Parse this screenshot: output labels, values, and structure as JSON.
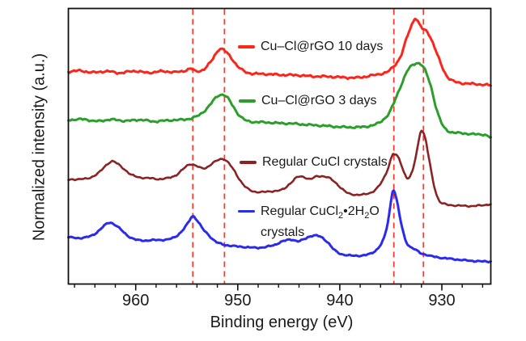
{
  "chart_data": {
    "type": "line",
    "title": "",
    "xlabel": "Binding energy (eV)",
    "ylabel": "Normalized intensity (a.u.)",
    "x_axis": {
      "max": 966.6,
      "min": 925.2,
      "reversed": true,
      "units": "eV",
      "major_ticks": [
        960,
        950,
        940,
        930
      ],
      "minor_tick_step": 2,
      "minor_tick_start": 966,
      "minor_tick_end": 926
    },
    "y_axis": {
      "units": "a.u.",
      "range": [
        0,
        100
      ],
      "ticks_shown": false
    },
    "grid": false,
    "legend_position": "inside-left-of-peaks",
    "guide_lines_ev": [
      954.4,
      951.3,
      934.7,
      931.8
    ],
    "guide_line_color": "#f93b30",
    "frame_color": "#111111",
    "series": [
      {
        "name": "Cu–Cl@rGO 10 days",
        "color": "#fa261b",
        "width": 3,
        "noise": 1.3,
        "points": [
          [
            966.6,
            77.1
          ],
          [
            965.5,
            77.4
          ],
          [
            964.2,
            76.8
          ],
          [
            962.8,
            77.2
          ],
          [
            961.5,
            76.6
          ],
          [
            960.2,
            77.3
          ],
          [
            958.8,
            76.7
          ],
          [
            957.4,
            77.2
          ],
          [
            956.2,
            76.9
          ],
          [
            955.2,
            77.4
          ],
          [
            954.6,
            78.2
          ],
          [
            954.1,
            77.2
          ],
          [
            953.3,
            78.0
          ],
          [
            952.6,
            80.9
          ],
          [
            951.9,
            84.9
          ],
          [
            951.4,
            85.0
          ],
          [
            950.7,
            82.4
          ],
          [
            950.0,
            79.0
          ],
          [
            949.3,
            77.1
          ],
          [
            948.6,
            76.4
          ],
          [
            947.2,
            76.2
          ],
          [
            945.7,
            75.9
          ],
          [
            944.2,
            75.8
          ],
          [
            942.7,
            75.4
          ],
          [
            941.2,
            75.3
          ],
          [
            939.7,
            75.0
          ],
          [
            938.3,
            74.9
          ],
          [
            937.0,
            75.6
          ],
          [
            936.1,
            76.2
          ],
          [
            935.3,
            77.1
          ],
          [
            934.6,
            79.5
          ],
          [
            934.0,
            83.0
          ],
          [
            933.4,
            89.7
          ],
          [
            932.9,
            94.4
          ],
          [
            932.6,
            96.5
          ],
          [
            932.2,
            94.3
          ],
          [
            931.8,
            92.3
          ],
          [
            931.4,
            91.5
          ],
          [
            930.8,
            86.8
          ],
          [
            930.2,
            80.9
          ],
          [
            929.6,
            76.0
          ],
          [
            929.0,
            73.9
          ],
          [
            928.3,
            73.0
          ],
          [
            927.2,
            72.7
          ],
          [
            926.1,
            72.4
          ],
          [
            925.2,
            72.1
          ]
        ]
      },
      {
        "name": "Cu–Cl@rGO 3 days",
        "color": "#2b9e2b",
        "width": 3,
        "noise": 1.2,
        "points": [
          [
            966.6,
            59.5
          ],
          [
            965.2,
            59.8
          ],
          [
            963.8,
            59.1
          ],
          [
            962.4,
            59.7
          ],
          [
            961.0,
            59.2
          ],
          [
            959.6,
            59.6
          ],
          [
            958.2,
            59.0
          ],
          [
            956.9,
            59.4
          ],
          [
            955.6,
            59.6
          ],
          [
            954.6,
            60.1
          ],
          [
            953.8,
            61.3
          ],
          [
            953.0,
            63.8
          ],
          [
            952.3,
            67.0
          ],
          [
            951.8,
            68.6
          ],
          [
            951.2,
            68.3
          ],
          [
            950.6,
            65.4
          ],
          [
            950.0,
            61.9
          ],
          [
            949.4,
            59.8
          ],
          [
            948.7,
            58.9
          ],
          [
            947.4,
            58.7
          ],
          [
            946.0,
            58.4
          ],
          [
            944.6,
            58.2
          ],
          [
            943.2,
            57.8
          ],
          [
            941.8,
            57.5
          ],
          [
            940.4,
            57.1
          ],
          [
            939.0,
            56.9
          ],
          [
            937.8,
            57.0
          ],
          [
            936.8,
            57.6
          ],
          [
            936.0,
            58.9
          ],
          [
            935.2,
            61.9
          ],
          [
            934.5,
            67.5
          ],
          [
            933.9,
            73.0
          ],
          [
            933.3,
            77.8
          ],
          [
            932.7,
            79.8
          ],
          [
            932.2,
            80.1
          ],
          [
            931.7,
            78.0
          ],
          [
            931.1,
            72.1
          ],
          [
            930.5,
            63.3
          ],
          [
            929.9,
            57.5
          ],
          [
            929.3,
            55.4
          ],
          [
            928.6,
            54.9
          ],
          [
            927.6,
            54.6
          ],
          [
            926.6,
            54.3
          ],
          [
            925.8,
            54.2
          ],
          [
            925.2,
            53.1
          ]
        ]
      },
      {
        "name": "Regular CuCl crystals",
        "color": "#8a2424",
        "width": 2.6,
        "noise": 0.9,
        "points": [
          [
            966.6,
            37.8
          ],
          [
            965.6,
            38.1
          ],
          [
            964.6,
            38.4
          ],
          [
            963.6,
            40.5
          ],
          [
            962.9,
            43.1
          ],
          [
            962.3,
            44.6
          ],
          [
            961.7,
            43.4
          ],
          [
            961.1,
            41.6
          ],
          [
            960.4,
            39.6
          ],
          [
            959.6,
            38.7
          ],
          [
            958.6,
            38.4
          ],
          [
            957.6,
            38.1
          ],
          [
            956.6,
            38.7
          ],
          [
            955.9,
            39.9
          ],
          [
            955.3,
            41.9
          ],
          [
            954.7,
            43.5
          ],
          [
            954.2,
            43.1
          ],
          [
            953.6,
            42.1
          ],
          [
            953.1,
            42.2
          ],
          [
            952.4,
            44.0
          ],
          [
            951.7,
            45.3
          ],
          [
            951.2,
            45.0
          ],
          [
            950.6,
            42.5
          ],
          [
            949.9,
            38.4
          ],
          [
            949.3,
            35.5
          ],
          [
            948.6,
            33.7
          ],
          [
            947.6,
            33.4
          ],
          [
            946.6,
            33.7
          ],
          [
            945.6,
            34.3
          ],
          [
            944.9,
            36.4
          ],
          [
            944.2,
            38.7
          ],
          [
            943.6,
            38.9
          ],
          [
            942.9,
            38.1
          ],
          [
            942.3,
            39.0
          ],
          [
            941.6,
            39.1
          ],
          [
            941.0,
            38.4
          ],
          [
            940.4,
            36.7
          ],
          [
            939.7,
            34.3
          ],
          [
            939.1,
            32.8
          ],
          [
            938.3,
            32.4
          ],
          [
            937.5,
            32.6
          ],
          [
            936.7,
            33.7
          ],
          [
            936.0,
            36.4
          ],
          [
            935.4,
            40.8
          ],
          [
            934.9,
            46.3
          ],
          [
            934.7,
            47.2
          ],
          [
            934.2,
            45.5
          ],
          [
            933.7,
            40.5
          ],
          [
            933.3,
            38.4
          ],
          [
            932.9,
            40.8
          ],
          [
            932.5,
            47.2
          ],
          [
            932.1,
            55.1
          ],
          [
            931.9,
            55.4
          ],
          [
            931.6,
            52.5
          ],
          [
            931.2,
            44.3
          ],
          [
            930.8,
            36.4
          ],
          [
            930.3,
            30.5
          ],
          [
            929.7,
            29.0
          ],
          [
            929.0,
            28.6
          ],
          [
            928.0,
            28.4
          ],
          [
            927.0,
            28.3
          ],
          [
            926.0,
            28.6
          ],
          [
            925.2,
            29.0
          ]
        ]
      },
      {
        "name": "Regular CuCl2•2H2O crystals",
        "color": "#2b2bee",
        "width": 3,
        "noise": 0.9,
        "points": [
          [
            966.6,
            17.0
          ],
          [
            965.5,
            16.7
          ],
          [
            964.5,
            17.3
          ],
          [
            963.8,
            18.8
          ],
          [
            963.1,
            21.1
          ],
          [
            962.6,
            22.3
          ],
          [
            962.1,
            21.7
          ],
          [
            961.5,
            19.9
          ],
          [
            960.8,
            17.6
          ],
          [
            960.0,
            16.1
          ],
          [
            959.0,
            15.8
          ],
          [
            958.0,
            16.0
          ],
          [
            957.0,
            16.1
          ],
          [
            956.2,
            17.0
          ],
          [
            955.5,
            19.1
          ],
          [
            954.9,
            22.0
          ],
          [
            954.45,
            24.6
          ],
          [
            954.0,
            23.2
          ],
          [
            953.4,
            19.9
          ],
          [
            952.8,
            17.6
          ],
          [
            952.2,
            15.5
          ],
          [
            951.5,
            14.4
          ],
          [
            950.5,
            13.8
          ],
          [
            949.5,
            13.5
          ],
          [
            948.5,
            13.2
          ],
          [
            947.5,
            13.3
          ],
          [
            946.5,
            14.1
          ],
          [
            945.8,
            15.2
          ],
          [
            945.1,
            16.0
          ],
          [
            944.6,
            16.1
          ],
          [
            944.1,
            15.5
          ],
          [
            943.6,
            16.1
          ],
          [
            943.0,
            17.2
          ],
          [
            942.4,
            17.6
          ],
          [
            941.8,
            17.0
          ],
          [
            941.2,
            15.2
          ],
          [
            940.6,
            12.6
          ],
          [
            940.0,
            11.1
          ],
          [
            939.2,
            10.4
          ],
          [
            938.4,
            10.3
          ],
          [
            937.6,
            10.4
          ],
          [
            936.8,
            11.4
          ],
          [
            936.2,
            13.2
          ],
          [
            935.7,
            16.4
          ],
          [
            935.3,
            22.3
          ],
          [
            935.0,
            29.6
          ],
          [
            934.8,
            34.0
          ],
          [
            934.6,
            33.1
          ],
          [
            934.3,
            28.2
          ],
          [
            934.0,
            22.3
          ],
          [
            933.6,
            16.4
          ],
          [
            933.2,
            13.8
          ],
          [
            932.8,
            12.9
          ],
          [
            932.4,
            12.0
          ],
          [
            932.0,
            11.1
          ],
          [
            931.5,
            10.6
          ],
          [
            931.0,
            10.1
          ],
          [
            930.0,
            9.5
          ],
          [
            929.0,
            9.1
          ],
          [
            928.0,
            8.7
          ],
          [
            927.0,
            8.4
          ],
          [
            926.0,
            8.2
          ],
          [
            925.2,
            8.2
          ]
        ]
      }
    ]
  },
  "legend": {
    "items": [
      {
        "label": "Cu–Cl@rGO 10 days"
      },
      {
        "label": "Cu–Cl@rGO 3 days"
      },
      {
        "label": "Regular CuCl crystals"
      },
      {
        "pre": "Regular CuCl",
        "sub1": "2",
        "mid": "•2H",
        "sub2": "2",
        "post": "O",
        "line2": "crystals"
      }
    ]
  }
}
